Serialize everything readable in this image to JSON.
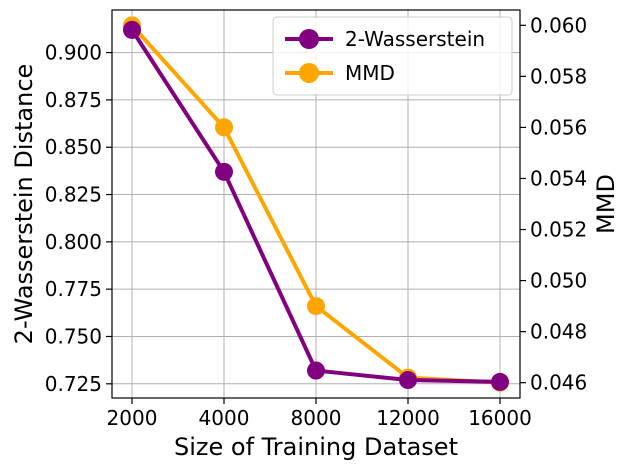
{
  "chart_data": {
    "type": "line",
    "x_categories": [
      2000,
      4000,
      8000,
      12000,
      16000
    ],
    "x_tick_labels": [
      "2000",
      "4000",
      "8000",
      "12000",
      "16000"
    ],
    "xlabel": "Size of Training Dataset",
    "series": [
      {
        "name": "2-Wasserstein",
        "axis": "left",
        "color": "#800080",
        "values": [
          0.912,
          0.837,
          0.732,
          0.727,
          0.726
        ]
      },
      {
        "name": "MMD",
        "axis": "right",
        "color": "#FFA500",
        "values": [
          0.06,
          0.056,
          0.049,
          0.0462,
          0.046
        ]
      }
    ],
    "left_axis": {
      "label": "2-Wasserstein Distance",
      "range": [
        0.7175,
        0.9225
      ],
      "ticks": [
        0.725,
        0.75,
        0.775,
        0.8,
        0.825,
        0.85,
        0.875,
        0.9
      ],
      "tick_labels": [
        "0.725",
        "0.750",
        "0.775",
        "0.800",
        "0.825",
        "0.850",
        "0.875",
        "0.900"
      ]
    },
    "right_axis": {
      "label": "MMD",
      "range": [
        0.0454,
        0.0606
      ],
      "ticks": [
        0.046,
        0.048,
        0.05,
        0.052,
        0.054,
        0.056,
        0.058,
        0.06
      ],
      "tick_labels": [
        "0.046",
        "0.048",
        "0.050",
        "0.052",
        "0.054",
        "0.056",
        "0.058",
        "0.060"
      ]
    },
    "grid": true,
    "legend_position": "top-right"
  }
}
